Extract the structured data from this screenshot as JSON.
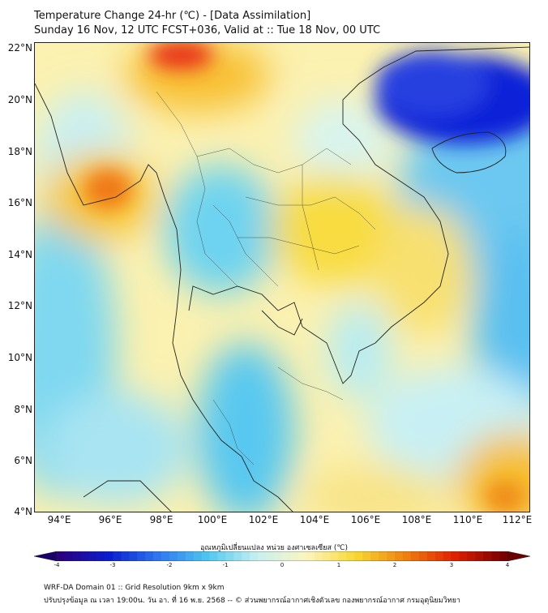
{
  "header": {
    "title": "Temperature Change 24-hr (℃) - [Data Assimilation]",
    "subtitle": "Sunday 16 Nov, 12 UTC FCST+036, Valid at :: Tue 18 Nov, 00 UTC"
  },
  "axes": {
    "y_labels": [
      "22°N",
      "20°N",
      "18°N",
      "16°N",
      "14°N",
      "12°N",
      "10°N",
      "8°N",
      "6°N",
      "4°N"
    ],
    "x_labels": [
      "94°E",
      "96°E",
      "98°E",
      "100°E",
      "102°E",
      "104°E",
      "106°E",
      "108°E",
      "110°E",
      "112°E"
    ],
    "lat_range": [
      4,
      22.2
    ],
    "lon_range": [
      93,
      112.4
    ]
  },
  "colorbar": {
    "title": "อุณหภูมิเปลี่ยนแปลง หน่วย องศาเซลเซียส (℃)",
    "ticks": [
      "-4",
      "-3",
      "-2",
      "-1",
      "0",
      "1",
      "2",
      "3",
      "4"
    ],
    "range": [
      -4,
      4
    ],
    "colors": [
      "#2a0080",
      "#0a1fd0",
      "#2f78f0",
      "#4fc8f0",
      "#c8f0f0",
      "#fbf5c0",
      "#f8d830",
      "#f08010",
      "#e02000",
      "#7a0000"
    ]
  },
  "footer": {
    "line1": "WRF-DA Domain 01 :: Grid Resolution 9km x 9km",
    "line2": "ปรับปรุงข้อมูล ณ เวลา 19:00น. วัน อา. ที่ 16 พ.ย. 2568 -- © ส่วนพยากรณ์อากาศเชิงตัวเลข กองพยากรณ์อากาศ กรมอุตุนิยมวิทยา"
  }
}
